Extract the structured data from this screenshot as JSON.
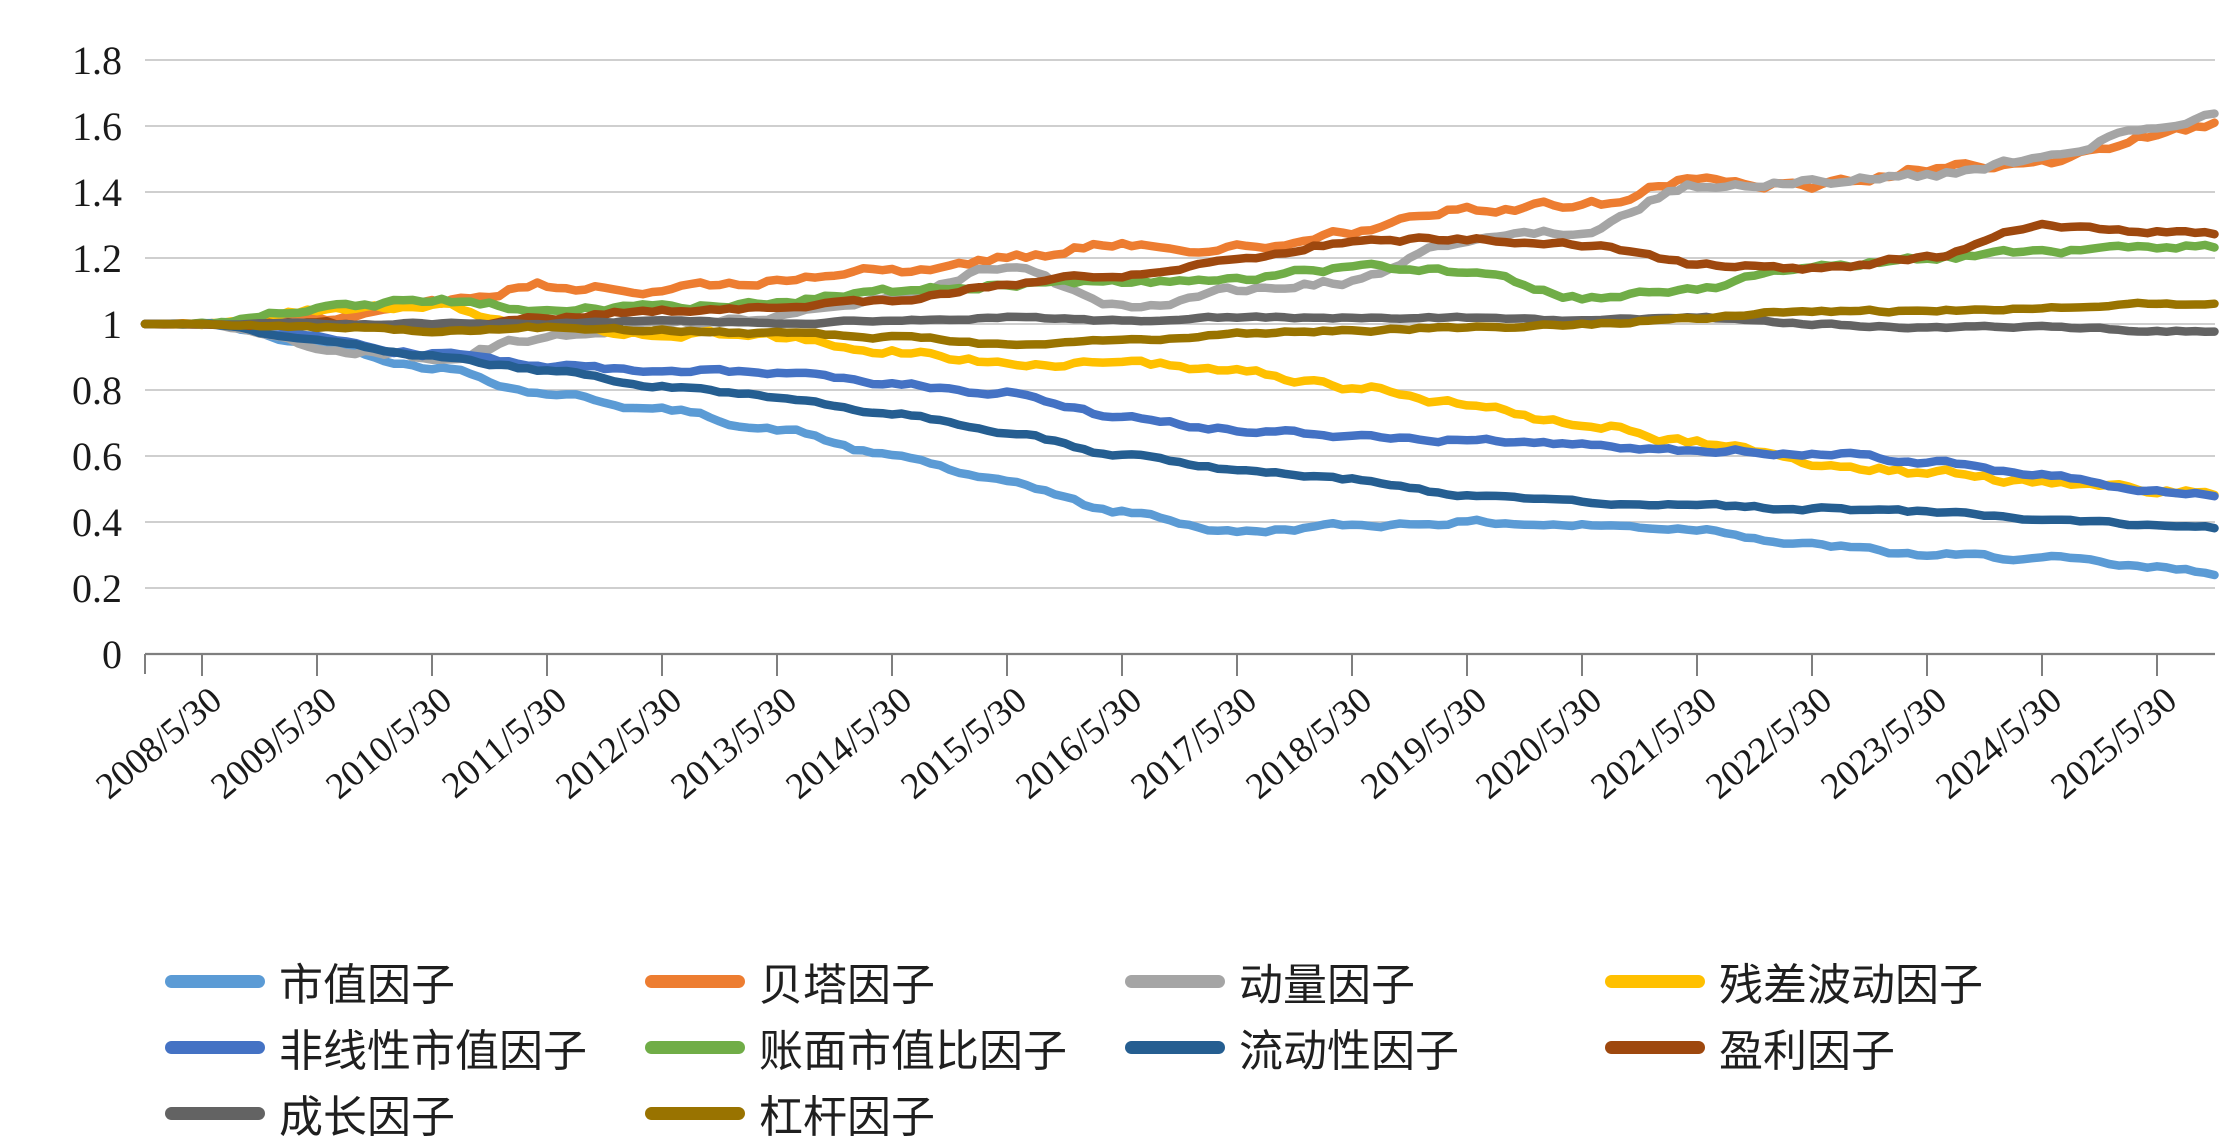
{
  "chart_data": {
    "type": "line",
    "title": "",
    "xlabel": "",
    "ylabel": "",
    "background": "#ffffff",
    "gridline_color": "#bfbfbf",
    "axis_color": "#7f7f7f",
    "legend_position": "bottom",
    "y_axis": {
      "min": 0,
      "max": 1.8,
      "step": 0.2,
      "tick_labels_top_to_bottom": [
        "1.8",
        "1.6",
        "1.4",
        "1.2",
        "1",
        "0.8",
        "0.6",
        "0.4",
        "0.2",
        "0"
      ]
    },
    "x_labels": [
      "2008/5/30",
      "2009/5/30",
      "2010/5/30",
      "2011/5/30",
      "2012/5/30",
      "2013/5/30",
      "2014/5/30",
      "2015/5/30",
      "2016/5/30",
      "2017/5/30",
      "2018/5/30",
      "2019/5/30",
      "2020/5/30",
      "2021/5/30",
      "2022/5/30",
      "2023/5/30",
      "2024/5/30",
      "2025/5/30"
    ],
    "series": [
      {
        "name": "市值因子",
        "color": "#5B9BD5",
        "volatility": 0.006,
        "values": [
          1.0,
          0.94,
          0.87,
          0.79,
          0.74,
          0.68,
          0.6,
          0.52,
          0.43,
          0.37,
          0.39,
          0.4,
          0.39,
          0.38,
          0.33,
          0.3,
          0.29,
          0.26
        ]
      },
      {
        "name": "贝塔因子",
        "color": "#ED7D31",
        "volatility": 0.011,
        "values": [
          1.0,
          1.02,
          1.07,
          1.12,
          1.1,
          1.13,
          1.16,
          1.2,
          1.25,
          1.23,
          1.28,
          1.35,
          1.36,
          1.44,
          1.42,
          1.47,
          1.49,
          1.57
        ]
      },
      {
        "name": "动量因子",
        "color": "#A5A5A5",
        "volatility": 0.009,
        "values": [
          1.0,
          0.93,
          0.9,
          0.96,
          1.0,
          1.02,
          1.08,
          1.17,
          1.05,
          1.1,
          1.13,
          1.25,
          1.28,
          1.42,
          1.43,
          1.45,
          1.5,
          1.6
        ]
      },
      {
        "name": "残差波动因子",
        "color": "#FFC000",
        "volatility": 0.009,
        "values": [
          1.0,
          1.04,
          1.05,
          1.0,
          0.97,
          0.96,
          0.92,
          0.88,
          0.89,
          0.85,
          0.81,
          0.76,
          0.7,
          0.64,
          0.58,
          0.55,
          0.52,
          0.5
        ]
      },
      {
        "name": "非线性市值因子",
        "color": "#4472C4",
        "volatility": 0.006,
        "values": [
          1.0,
          0.96,
          0.91,
          0.87,
          0.86,
          0.85,
          0.82,
          0.79,
          0.72,
          0.68,
          0.66,
          0.65,
          0.63,
          0.62,
          0.61,
          0.58,
          0.54,
          0.5
        ]
      },
      {
        "name": "账面市值比因子",
        "color": "#70AD47",
        "volatility": 0.008,
        "values": [
          1.0,
          1.05,
          1.07,
          1.05,
          1.05,
          1.07,
          1.1,
          1.12,
          1.13,
          1.14,
          1.17,
          1.16,
          1.08,
          1.11,
          1.17,
          1.2,
          1.22,
          1.23
        ]
      },
      {
        "name": "流动性因子",
        "color": "#255E91",
        "volatility": 0.004,
        "values": [
          1.0,
          0.95,
          0.9,
          0.86,
          0.81,
          0.78,
          0.73,
          0.67,
          0.6,
          0.56,
          0.53,
          0.48,
          0.46,
          0.45,
          0.44,
          0.43,
          0.41,
          0.39
        ]
      },
      {
        "name": "盈利因子",
        "color": "#9E480E",
        "volatility": 0.006,
        "values": [
          1.0,
          1.0,
          0.99,
          1.02,
          1.04,
          1.05,
          1.07,
          1.12,
          1.15,
          1.19,
          1.25,
          1.26,
          1.24,
          1.18,
          1.17,
          1.2,
          1.3,
          1.28
        ]
      },
      {
        "name": "成长因子",
        "color": "#636363",
        "volatility": 0.003,
        "values": [
          1.0,
          1.0,
          1.0,
          1.0,
          1.01,
          1.0,
          1.01,
          1.02,
          1.01,
          1.02,
          1.02,
          1.02,
          1.01,
          1.02,
          1.0,
          0.99,
          0.99,
          0.98
        ]
      },
      {
        "name": "杠杆因子",
        "color": "#997300",
        "volatility": 0.004,
        "values": [
          1.0,
          0.99,
          0.98,
          0.99,
          0.98,
          0.97,
          0.96,
          0.94,
          0.95,
          0.97,
          0.98,
          0.99,
          1.0,
          1.02,
          1.04,
          1.04,
          1.05,
          1.06
        ]
      }
    ]
  }
}
